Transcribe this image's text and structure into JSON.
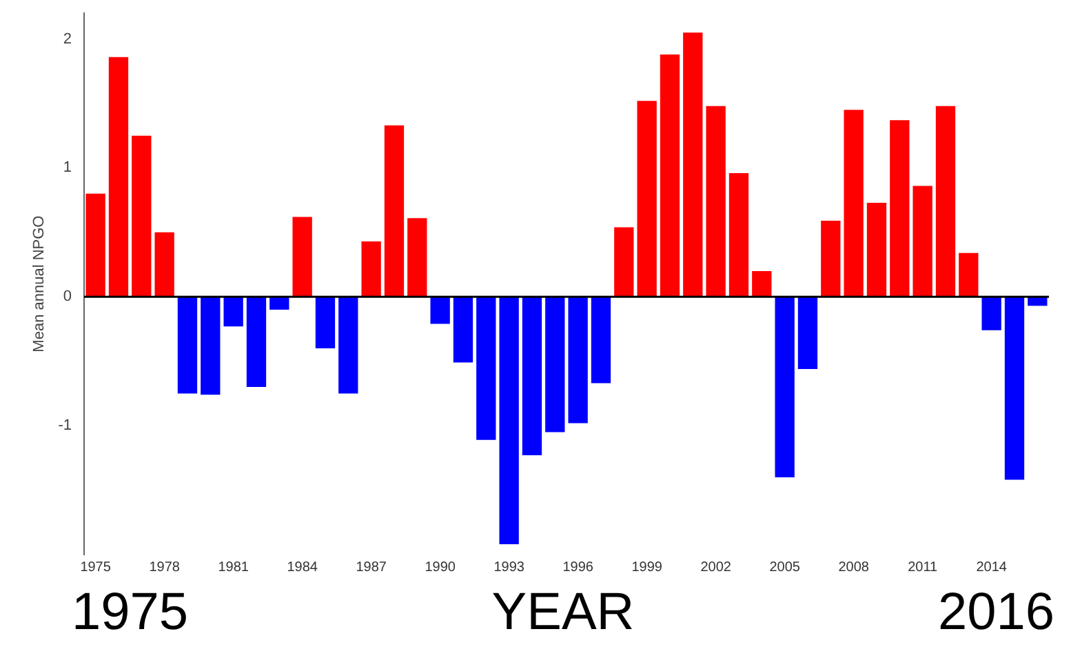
{
  "chart_data": {
    "type": "bar",
    "ylabel": "Mean annual NPGO",
    "xlabel": "YEAR",
    "categories": [
      "1975",
      null,
      null,
      "1978",
      null,
      null,
      "1981",
      null,
      null,
      "1984",
      null,
      null,
      "1987",
      null,
      null,
      "1990",
      null,
      null,
      "1993",
      null,
      null,
      "1996",
      null,
      null,
      "1999",
      null,
      null,
      "2002",
      null,
      null,
      "2005",
      null,
      null,
      "2008",
      null,
      null,
      "2011",
      null,
      null,
      "2014",
      null,
      null
    ],
    "values": [
      0.8,
      1.86,
      1.25,
      0.5,
      -0.75,
      -0.76,
      -0.23,
      -0.7,
      -0.1,
      0.62,
      -0.4,
      -0.75,
      0.43,
      1.33,
      0.61,
      -0.21,
      -0.51,
      -1.11,
      -1.92,
      -1.23,
      -1.05,
      -0.98,
      -0.67,
      0.54,
      1.52,
      1.88,
      2.05,
      1.48,
      0.96,
      0.2,
      -1.4,
      -0.56,
      0.59,
      1.45,
      0.73,
      1.37,
      0.86,
      1.48,
      0.34,
      -0.26,
      -1.42,
      -0.07
    ],
    "colors": [
      "#ff0000",
      "#ff0000",
      "#ff0000",
      "#ff0000",
      "#0000ff",
      "#0000ff",
      "#0000ff",
      "#0000ff",
      "#0000ff",
      "#ff0000",
      "#0000ff",
      "#0000ff",
      "#ff0000",
      "#ff0000",
      "#ff0000",
      "#0000ff",
      "#0000ff",
      "#0000ff",
      "#0000ff",
      "#0000ff",
      "#0000ff",
      "#0000ff",
      "#0000ff",
      "#ff0000",
      "#ff0000",
      "#ff0000",
      "#ff0000",
      "#ff0000",
      "#ff0000",
      "#ff0000",
      "#0000ff",
      "#0000ff",
      "#ff0000",
      "#ff0000",
      "#ff0000",
      "#ff0000",
      "#ff0000",
      "#ff0000",
      "#ff0000",
      "#0000ff",
      "#0000ff",
      "#0000ff"
    ],
    "ylim": [
      -2,
      2.2
    ],
    "yticks": [
      -1,
      0,
      1,
      2
    ],
    "ref_lines": [
      {
        "axis": "y",
        "value": 0,
        "color": "#000000"
      }
    ],
    "annotations": [
      "1975",
      "2016"
    ],
    "grid": false,
    "legend": false
  }
}
